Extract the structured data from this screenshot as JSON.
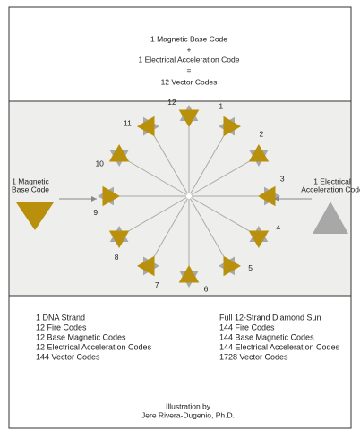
{
  "header": {
    "lines": [
      "1 Magnetic Base Code",
      "+",
      "1 Electrical Acceleration Code",
      "=",
      "12 Vector Codes"
    ]
  },
  "diagram": {
    "left_label": [
      "1 Magnetic",
      "Base Code"
    ],
    "right_label": [
      "1 Electrical",
      "Acceleration Code"
    ],
    "positions": [
      "1",
      "2",
      "3",
      "4",
      "5",
      "6",
      "7",
      "8",
      "9",
      "10",
      "11",
      "12"
    ]
  },
  "summary": {
    "left": [
      "1 DNA Strand",
      "12 Fire Codes",
      "12 Base Magnetic Codes",
      "12 Electrical Acceleration Codes",
      "144 Vector Codes"
    ],
    "right": [
      "Full 12-Strand Diamond Sun",
      "144 Fire Codes",
      "144 Base Magnetic Codes",
      "144 Electrical Acceleration Codes",
      "1728 Vector Codes"
    ]
  },
  "credit": [
    "Illustration by",
    "Jere Rivera-Dugenio, Ph.D."
  ]
}
